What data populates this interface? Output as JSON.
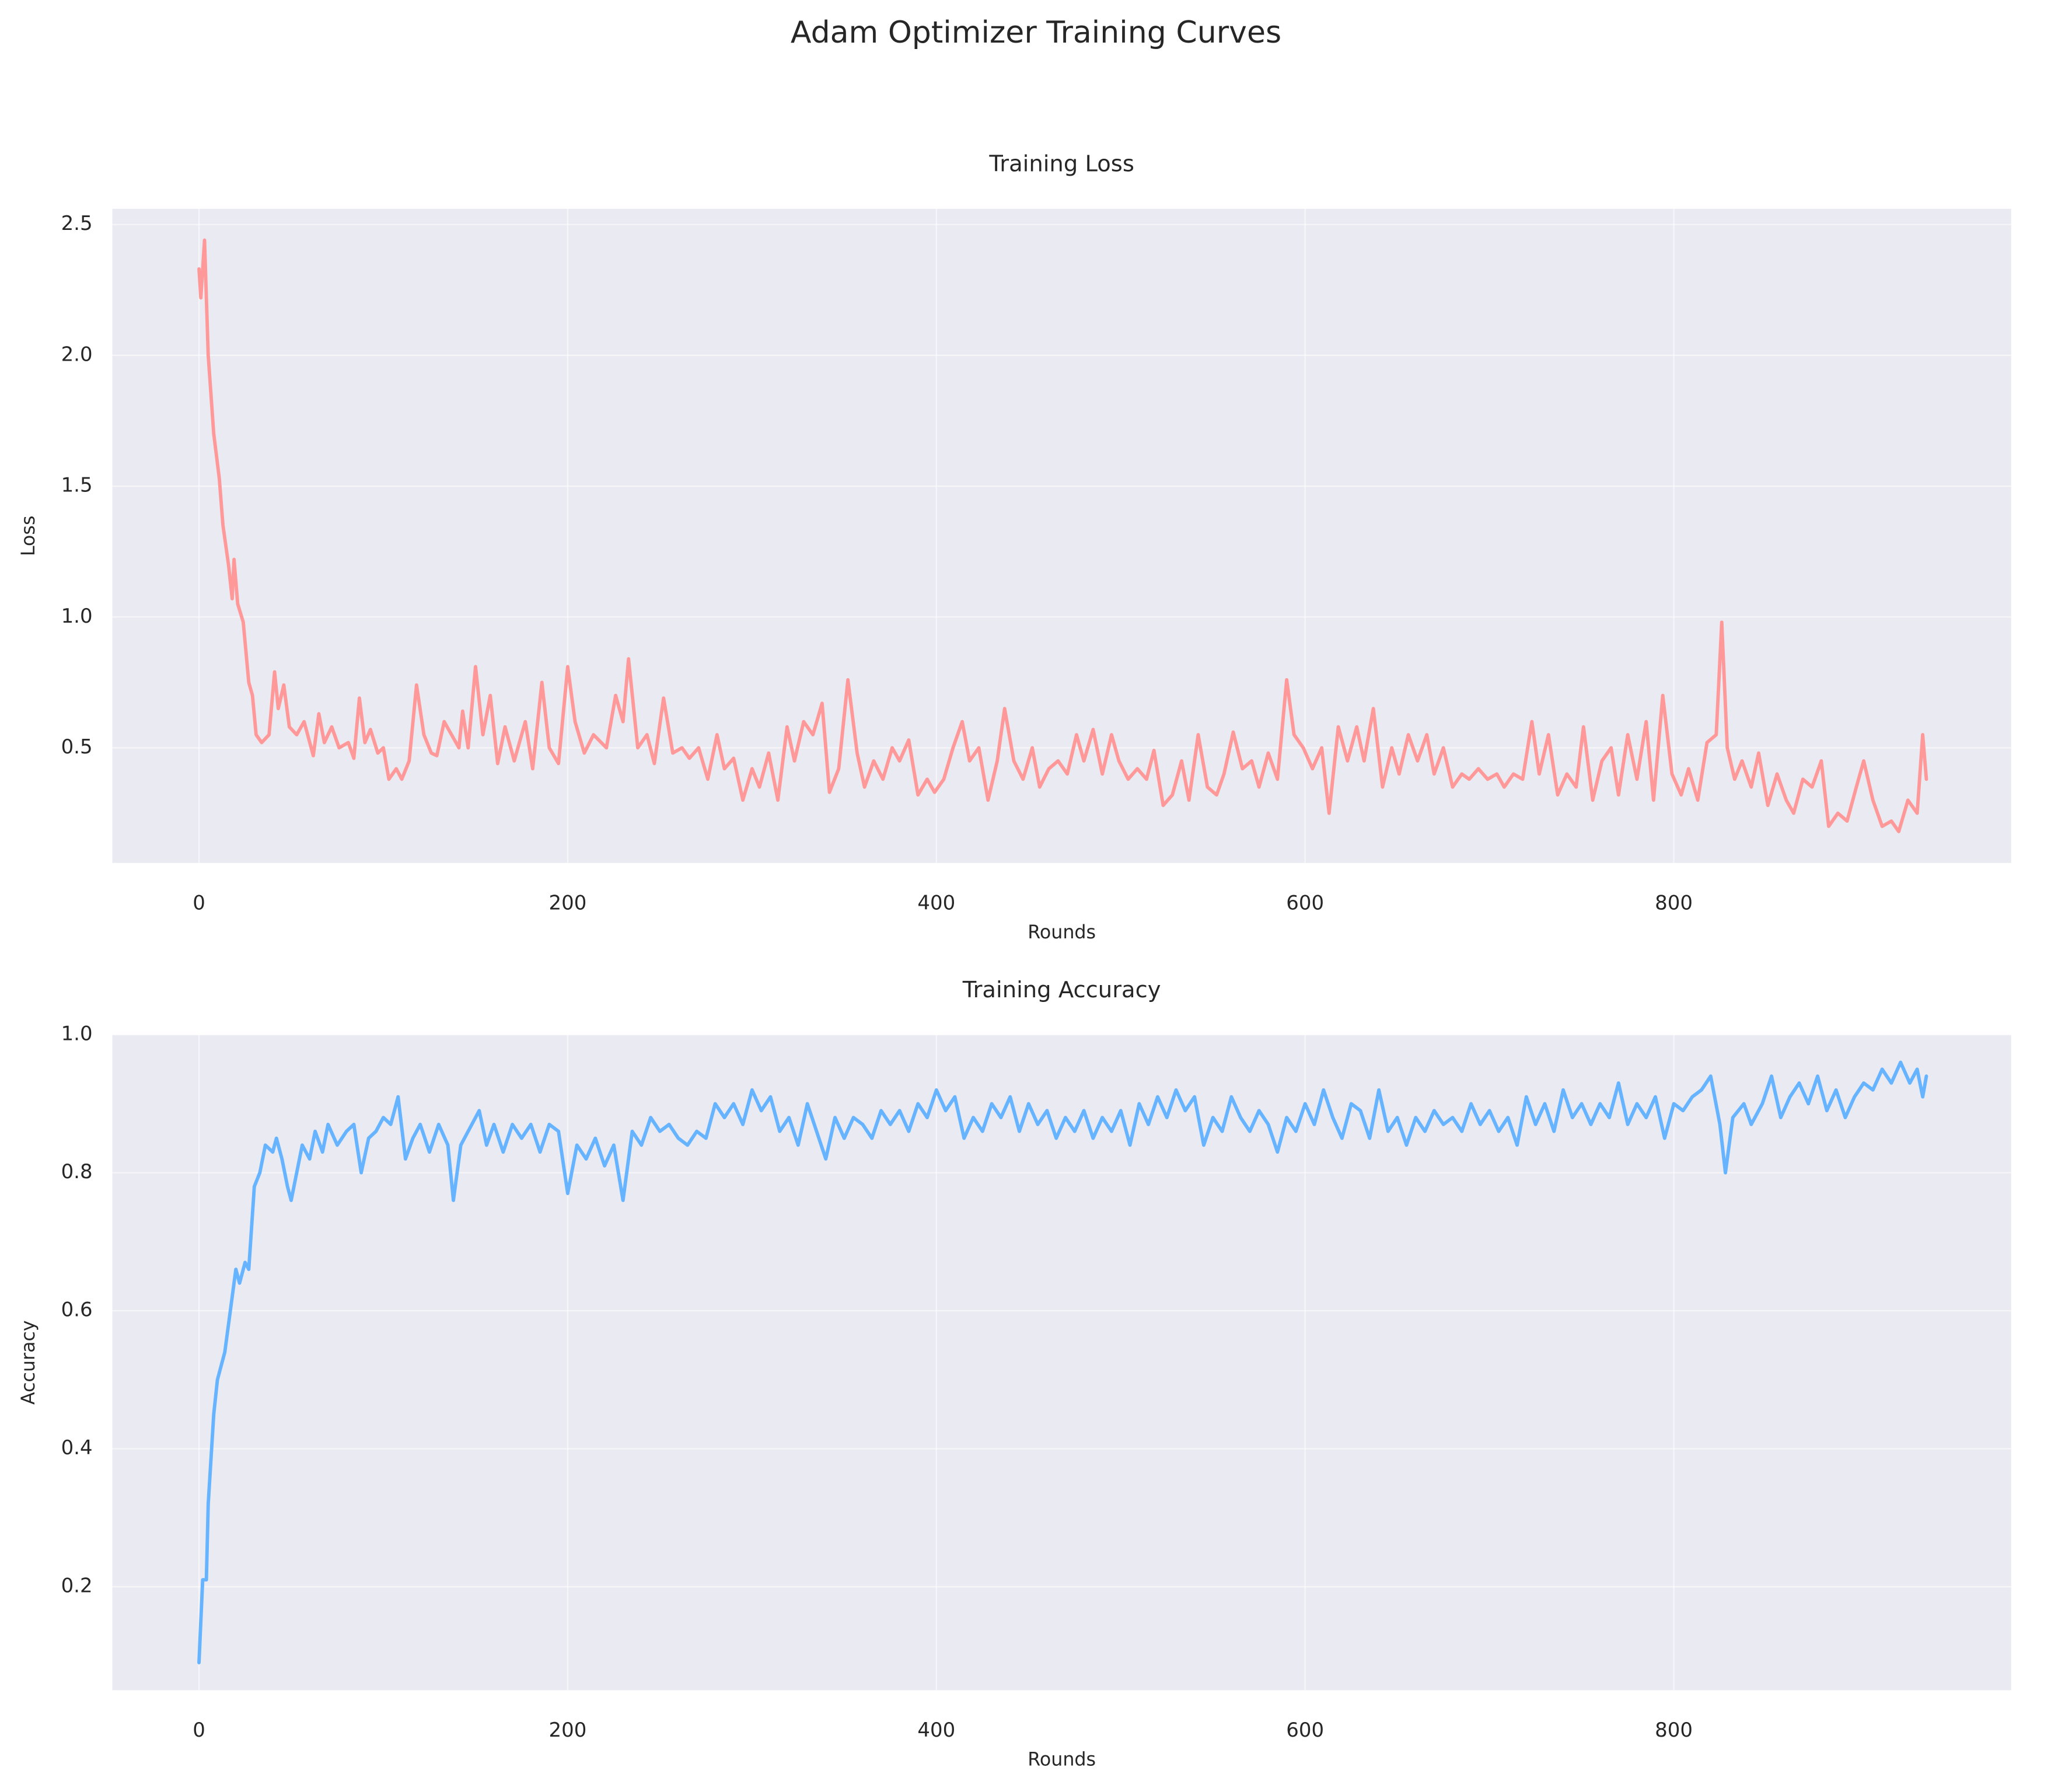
{
  "title": "Adam Optimizer Training Curves",
  "chart_data": [
    {
      "type": "line",
      "title": "Training Loss",
      "xlabel": "Rounds",
      "ylabel": "Loss",
      "color": "#ff9999",
      "grid": true,
      "xlim": [
        -47,
        983
      ],
      "ylim": [
        0.06,
        2.56
      ],
      "xticks": [
        0,
        200,
        400,
        600,
        800
      ],
      "yticks": [
        0.5,
        {
          "value": 1,
          "label": "1.0"
        },
        1.5,
        {
          "value": 2,
          "label": "2.0"
        },
        2.5
      ],
      "x": [
        0,
        1,
        3,
        5,
        8,
        11,
        13,
        16,
        18,
        19,
        21,
        24,
        27,
        29,
        31,
        34,
        38,
        41,
        43,
        46,
        49,
        53,
        57,
        62,
        65,
        68,
        72,
        76,
        81,
        84,
        87,
        90,
        93,
        97,
        100,
        103,
        107,
        110,
        114,
        118,
        122,
        126,
        129,
        133,
        137,
        141,
        143,
        146,
        150,
        154,
        158,
        162,
        166,
        171,
        177,
        181,
        186,
        190,
        195,
        200,
        204,
        209,
        214,
        221,
        226,
        230,
        233,
        238,
        243,
        247,
        252,
        257,
        262,
        266,
        271,
        276,
        281,
        285,
        290,
        295,
        300,
        304,
        309,
        314,
        319,
        323,
        328,
        333,
        338,
        342,
        347,
        352,
        357,
        361,
        366,
        371,
        376,
        380,
        385,
        390,
        395,
        399,
        404,
        409,
        414,
        418,
        423,
        428,
        433,
        437,
        442,
        447,
        452,
        456,
        461,
        466,
        471,
        476,
        480,
        485,
        490,
        495,
        499,
        504,
        509,
        514,
        518,
        523,
        528,
        533,
        537,
        542,
        547,
        552,
        556,
        561,
        566,
        571,
        575,
        580,
        585,
        590,
        594,
        599,
        604,
        609,
        613,
        618,
        623,
        628,
        632,
        637,
        642,
        647,
        651,
        656,
        661,
        666,
        670,
        675,
        680,
        685,
        689,
        694,
        699,
        704,
        708,
        713,
        718,
        723,
        727,
        732,
        737,
        742,
        747,
        751,
        756,
        761,
        766,
        770,
        775,
        780,
        785,
        789,
        794,
        799,
        804,
        808,
        813,
        818,
        823,
        826,
        829,
        833,
        837,
        842,
        846,
        851,
        856,
        861,
        865,
        870,
        875,
        880,
        884,
        889,
        894,
        899,
        903,
        908,
        913,
        918,
        922,
        927,
        932,
        935,
        937
      ],
      "values": [
        2.33,
        2.22,
        2.44,
        2.0,
        1.7,
        1.53,
        1.35,
        1.2,
        1.07,
        1.22,
        1.05,
        0.98,
        0.75,
        0.7,
        0.55,
        0.52,
        0.55,
        0.79,
        0.65,
        0.74,
        0.58,
        0.55,
        0.6,
        0.47,
        0.63,
        0.52,
        0.58,
        0.5,
        0.52,
        0.46,
        0.69,
        0.52,
        0.57,
        0.48,
        0.5,
        0.38,
        0.42,
        0.38,
        0.45,
        0.74,
        0.55,
        0.48,
        0.47,
        0.6,
        0.55,
        0.5,
        0.64,
        0.5,
        0.81,
        0.55,
        0.7,
        0.44,
        0.58,
        0.45,
        0.6,
        0.42,
        0.75,
        0.5,
        0.44,
        0.81,
        0.6,
        0.48,
        0.55,
        0.5,
        0.7,
        0.6,
        0.84,
        0.5,
        0.55,
        0.44,
        0.69,
        0.48,
        0.5,
        0.46,
        0.5,
        0.38,
        0.55,
        0.42,
        0.46,
        0.3,
        0.42,
        0.35,
        0.48,
        0.3,
        0.58,
        0.45,
        0.6,
        0.55,
        0.67,
        0.33,
        0.42,
        0.76,
        0.48,
        0.35,
        0.45,
        0.38,
        0.5,
        0.45,
        0.53,
        0.32,
        0.38,
        0.33,
        0.38,
        0.5,
        0.6,
        0.45,
        0.5,
        0.3,
        0.45,
        0.65,
        0.45,
        0.38,
        0.5,
        0.35,
        0.42,
        0.45,
        0.4,
        0.55,
        0.45,
        0.57,
        0.4,
        0.55,
        0.45,
        0.38,
        0.42,
        0.38,
        0.49,
        0.28,
        0.32,
        0.45,
        0.3,
        0.55,
        0.35,
        0.32,
        0.4,
        0.56,
        0.42,
        0.45,
        0.35,
        0.48,
        0.38,
        0.76,
        0.55,
        0.5,
        0.42,
        0.5,
        0.25,
        0.58,
        0.45,
        0.58,
        0.45,
        0.65,
        0.35,
        0.5,
        0.4,
        0.55,
        0.45,
        0.55,
        0.4,
        0.5,
        0.35,
        0.4,
        0.38,
        0.42,
        0.38,
        0.4,
        0.35,
        0.4,
        0.38,
        0.6,
        0.4,
        0.55,
        0.32,
        0.4,
        0.35,
        0.58,
        0.3,
        0.45,
        0.5,
        0.32,
        0.55,
        0.38,
        0.6,
        0.3,
        0.7,
        0.4,
        0.32,
        0.42,
        0.3,
        0.52,
        0.55,
        0.98,
        0.5,
        0.38,
        0.45,
        0.35,
        0.48,
        0.28,
        0.4,
        0.3,
        0.25,
        0.38,
        0.35,
        0.45,
        0.2,
        0.25,
        0.22,
        0.35,
        0.45,
        0.3,
        0.2,
        0.22,
        0.18,
        0.3,
        0.25,
        0.55,
        0.38
      ]
    },
    {
      "type": "line",
      "title": "Training Accuracy",
      "xlabel": "Rounds",
      "ylabel": "Accuracy",
      "color": "#66b3ff",
      "grid": true,
      "xlim": [
        -47,
        983
      ],
      "ylim": [
        0.05,
        1.0
      ],
      "xticks": [
        0,
        200,
        400,
        600,
        800
      ],
      "yticks": [
        0.2,
        0.4,
        0.6,
        0.8,
        {
          "value": 1,
          "label": "1.0"
        }
      ],
      "x": [
        0,
        2,
        4,
        5,
        8,
        10,
        14,
        17,
        20,
        22,
        25,
        27,
        30,
        33,
        36,
        40,
        42,
        45,
        48,
        50,
        53,
        56,
        60,
        63,
        67,
        70,
        75,
        80,
        84,
        88,
        92,
        96,
        100,
        104,
        108,
        112,
        116,
        120,
        125,
        130,
        135,
        138,
        142,
        148,
        152,
        156,
        160,
        165,
        170,
        175,
        180,
        185,
        190,
        195,
        200,
        205,
        210,
        215,
        220,
        225,
        230,
        235,
        240,
        245,
        250,
        255,
        260,
        265,
        270,
        275,
        280,
        285,
        290,
        295,
        300,
        305,
        310,
        315,
        320,
        325,
        330,
        335,
        340,
        345,
        350,
        355,
        360,
        365,
        370,
        375,
        380,
        385,
        390,
        395,
        400,
        405,
        410,
        415,
        420,
        425,
        430,
        435,
        440,
        445,
        450,
        455,
        460,
        465,
        470,
        475,
        480,
        485,
        490,
        495,
        500,
        505,
        510,
        515,
        520,
        525,
        530,
        535,
        540,
        545,
        550,
        555,
        560,
        565,
        570,
        575,
        580,
        585,
        590,
        595,
        600,
        605,
        610,
        615,
        620,
        625,
        630,
        635,
        640,
        645,
        650,
        655,
        660,
        665,
        670,
        675,
        680,
        685,
        690,
        695,
        700,
        705,
        710,
        715,
        720,
        725,
        730,
        735,
        740,
        745,
        750,
        755,
        760,
        765,
        770,
        775,
        780,
        785,
        790,
        795,
        800,
        805,
        810,
        815,
        820,
        825,
        828,
        832,
        838,
        842,
        848,
        853,
        858,
        863,
        868,
        873,
        878,
        883,
        888,
        893,
        898,
        903,
        908,
        913,
        918,
        923,
        928,
        932,
        935,
        937
      ],
      "values": [
        0.09,
        0.21,
        0.21,
        0.32,
        0.45,
        0.5,
        0.54,
        0.6,
        0.66,
        0.64,
        0.67,
        0.66,
        0.78,
        0.8,
        0.84,
        0.83,
        0.85,
        0.82,
        0.78,
        0.76,
        0.8,
        0.84,
        0.82,
        0.86,
        0.83,
        0.87,
        0.84,
        0.86,
        0.87,
        0.8,
        0.85,
        0.86,
        0.88,
        0.87,
        0.91,
        0.82,
        0.85,
        0.87,
        0.83,
        0.87,
        0.84,
        0.76,
        0.84,
        0.87,
        0.89,
        0.84,
        0.87,
        0.83,
        0.87,
        0.85,
        0.87,
        0.83,
        0.87,
        0.86,
        0.77,
        0.84,
        0.82,
        0.85,
        0.81,
        0.84,
        0.76,
        0.86,
        0.84,
        0.88,
        0.86,
        0.87,
        0.85,
        0.84,
        0.86,
        0.85,
        0.9,
        0.88,
        0.9,
        0.87,
        0.92,
        0.89,
        0.91,
        0.86,
        0.88,
        0.84,
        0.9,
        0.86,
        0.82,
        0.88,
        0.85,
        0.88,
        0.87,
        0.85,
        0.89,
        0.87,
        0.89,
        0.86,
        0.9,
        0.88,
        0.92,
        0.89,
        0.91,
        0.85,
        0.88,
        0.86,
        0.9,
        0.88,
        0.91,
        0.86,
        0.9,
        0.87,
        0.89,
        0.85,
        0.88,
        0.86,
        0.89,
        0.85,
        0.88,
        0.86,
        0.89,
        0.84,
        0.9,
        0.87,
        0.91,
        0.88,
        0.92,
        0.89,
        0.91,
        0.84,
        0.88,
        0.86,
        0.91,
        0.88,
        0.86,
        0.89,
        0.87,
        0.83,
        0.88,
        0.86,
        0.9,
        0.87,
        0.92,
        0.88,
        0.85,
        0.9,
        0.89,
        0.85,
        0.92,
        0.86,
        0.88,
        0.84,
        0.88,
        0.86,
        0.89,
        0.87,
        0.88,
        0.86,
        0.9,
        0.87,
        0.89,
        0.86,
        0.88,
        0.84,
        0.91,
        0.87,
        0.9,
        0.86,
        0.92,
        0.88,
        0.9,
        0.87,
        0.9,
        0.88,
        0.93,
        0.87,
        0.9,
        0.88,
        0.91,
        0.85,
        0.9,
        0.89,
        0.91,
        0.92,
        0.94,
        0.87,
        0.8,
        0.88,
        0.9,
        0.87,
        0.9,
        0.94,
        0.88,
        0.91,
        0.93,
        0.9,
        0.94,
        0.89,
        0.92,
        0.88,
        0.91,
        0.93,
        0.92,
        0.95,
        0.93,
        0.96,
        0.93,
        0.95,
        0.91,
        0.94
      ]
    }
  ]
}
